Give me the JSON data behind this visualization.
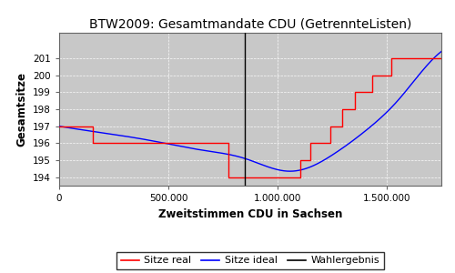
{
  "title": "BTW2009: Gesamtmandate CDU (GetrennteListen)",
  "xlabel": "Zweitstimmen CDU in Sachsen",
  "ylabel": "Gesamtsitze",
  "bg_color": "#c8c8c8",
  "wahlergebnis_x": 850000,
  "xlim": [
    0,
    1750000
  ],
  "ylim": [
    193.5,
    202.5
  ],
  "yticks": [
    194,
    195,
    196,
    197,
    198,
    199,
    200,
    201
  ],
  "xticks": [
    0,
    500000,
    1000000,
    1500000
  ],
  "xtick_labels": [
    "0",
    "500.000",
    "1.000.000",
    "1.500.000"
  ],
  "legend_labels": [
    "Sitze real",
    "Sitze ideal",
    "Wahlergebnis"
  ],
  "sitze_real_steps": [
    [
      0,
      197
    ],
    [
      155000,
      197
    ],
    [
      155000,
      196
    ],
    [
      775000,
      196
    ],
    [
      775000,
      194
    ],
    [
      1105000,
      194
    ],
    [
      1105000,
      195
    ],
    [
      1150000,
      195
    ],
    [
      1150000,
      196
    ],
    [
      1200000,
      196
    ],
    [
      1240000,
      196
    ],
    [
      1240000,
      197
    ],
    [
      1295000,
      197
    ],
    [
      1295000,
      198
    ],
    [
      1355000,
      198
    ],
    [
      1355000,
      199
    ],
    [
      1435000,
      199
    ],
    [
      1435000,
      200
    ],
    [
      1520000,
      200
    ],
    [
      1520000,
      201
    ],
    [
      1750000,
      201
    ]
  ],
  "ideal_x_pts": [
    0,
    150000,
    400000,
    650000,
    850000,
    1050000,
    1150000,
    1250000,
    1400000,
    1550000,
    1700000,
    1750000
  ],
  "ideal_y_pts": [
    197.0,
    196.7,
    196.2,
    195.6,
    195.1,
    194.35,
    194.6,
    195.3,
    196.7,
    198.5,
    200.8,
    201.4
  ]
}
